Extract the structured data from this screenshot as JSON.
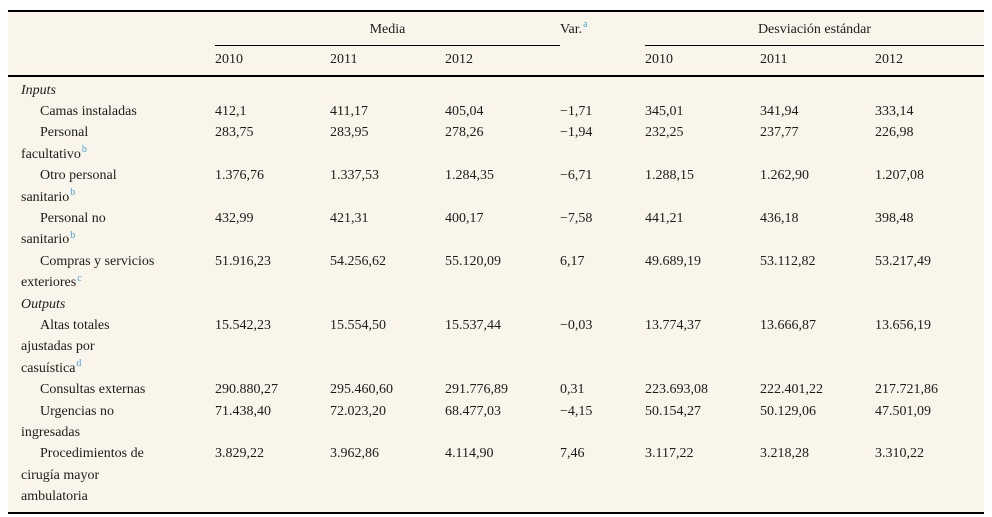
{
  "header": {
    "media_label": "Media",
    "var_label": "Var.",
    "var_footnote": "a",
    "sd_label": "Desviación estándar",
    "years": [
      "2010",
      "2011",
      "2012"
    ]
  },
  "colors": {
    "background": "#f9f5ea",
    "text": "#1c1c1c",
    "footnote_link": "#4aa3db",
    "rule": "#000000"
  },
  "table": {
    "rows": [
      {
        "section": true,
        "label_lines": [
          "Inputs"
        ]
      },
      {
        "label_lines": [
          "Camas instaladas"
        ],
        "media": [
          "412,1",
          "411,17",
          "405,04"
        ],
        "var": "−1,71",
        "sd": [
          "345,01",
          "341,94",
          "333,14"
        ]
      },
      {
        "label_lines": [
          "Personal",
          "facultativo"
        ],
        "footnote": "b",
        "media": [
          "283,75",
          "283,95",
          "278,26"
        ],
        "var": "−1,94",
        "sd": [
          "232,25",
          "237,77",
          "226,98"
        ]
      },
      {
        "label_lines": [
          "Otro personal",
          "sanitario"
        ],
        "footnote": "b",
        "media": [
          "1.376,76",
          "1.337,53",
          "1.284,35"
        ],
        "var": "−6,71",
        "sd": [
          "1.288,15",
          "1.262,90",
          "1.207,08"
        ]
      },
      {
        "label_lines": [
          "Personal no",
          "sanitario"
        ],
        "footnote": "b",
        "media": [
          "432,99",
          "421,31",
          "400,17"
        ],
        "var": "−7,58",
        "sd": [
          "441,21",
          "436,18",
          "398,48"
        ]
      },
      {
        "label_lines": [
          "Compras y servicios",
          "exteriores"
        ],
        "footnote": "c",
        "media": [
          "51.916,23",
          "54.256,62",
          "55.120,09"
        ],
        "var": "6,17",
        "sd": [
          "49.689,19",
          "53.112,82",
          "53.217,49"
        ]
      },
      {
        "section": true,
        "label_lines": [
          "Outputs"
        ]
      },
      {
        "label_lines": [
          "Altas totales",
          "ajustadas por",
          "casuística"
        ],
        "footnote": "d",
        "media": [
          "15.542,23",
          "15.554,50",
          "15.537,44"
        ],
        "var": "−0,03",
        "sd": [
          "13.774,37",
          "13.666,87",
          "13.656,19"
        ]
      },
      {
        "label_lines": [
          "Consultas externas"
        ],
        "media": [
          "290.880,27",
          "295.460,60",
          "291.776,89"
        ],
        "var": "0,31",
        "sd": [
          "223.693,08",
          "222.401,22",
          "217.721,86"
        ]
      },
      {
        "label_lines": [
          "Urgencias no",
          "ingresadas"
        ],
        "media": [
          "71.438,40",
          "72.023,20",
          "68.477,03"
        ],
        "var": "−4,15",
        "sd": [
          "50.154,27",
          "50.129,06",
          "47.501,09"
        ]
      },
      {
        "label_lines": [
          "Procedimientos de",
          "cirugía mayor",
          "ambulatoria"
        ],
        "media": [
          "3.829,22",
          "3.962,86",
          "4.114,90"
        ],
        "var": "7,46",
        "sd": [
          "3.117,22",
          "3.218,28",
          "3.310,22"
        ]
      }
    ]
  }
}
